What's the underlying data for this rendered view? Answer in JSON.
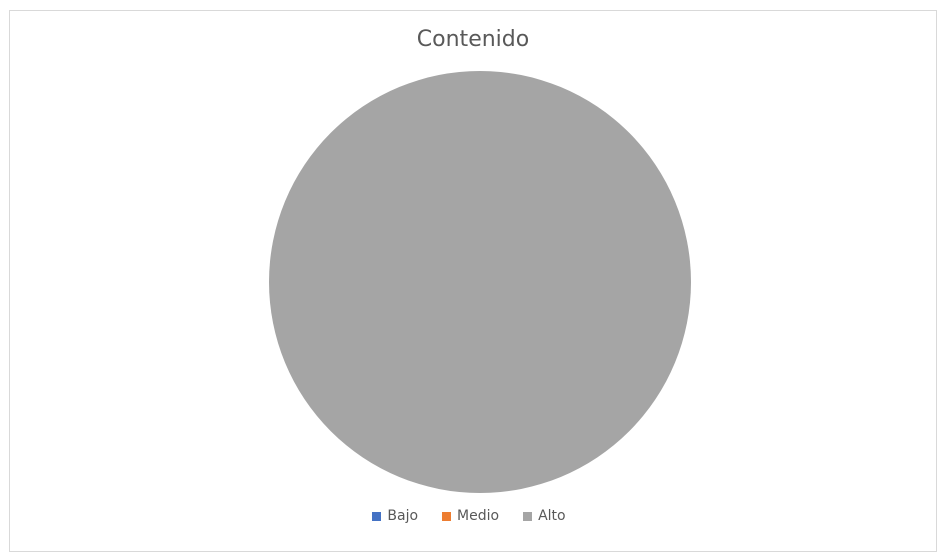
{
  "chart_data": {
    "type": "pie",
    "title": "Contenido",
    "categories": [
      "Bajo",
      "Medio",
      "Alto"
    ],
    "values": [
      0,
      0,
      1
    ],
    "colors": [
      "#4472c4",
      "#ed7d31",
      "#a5a5a5"
    ],
    "legend_position": "bottom"
  }
}
